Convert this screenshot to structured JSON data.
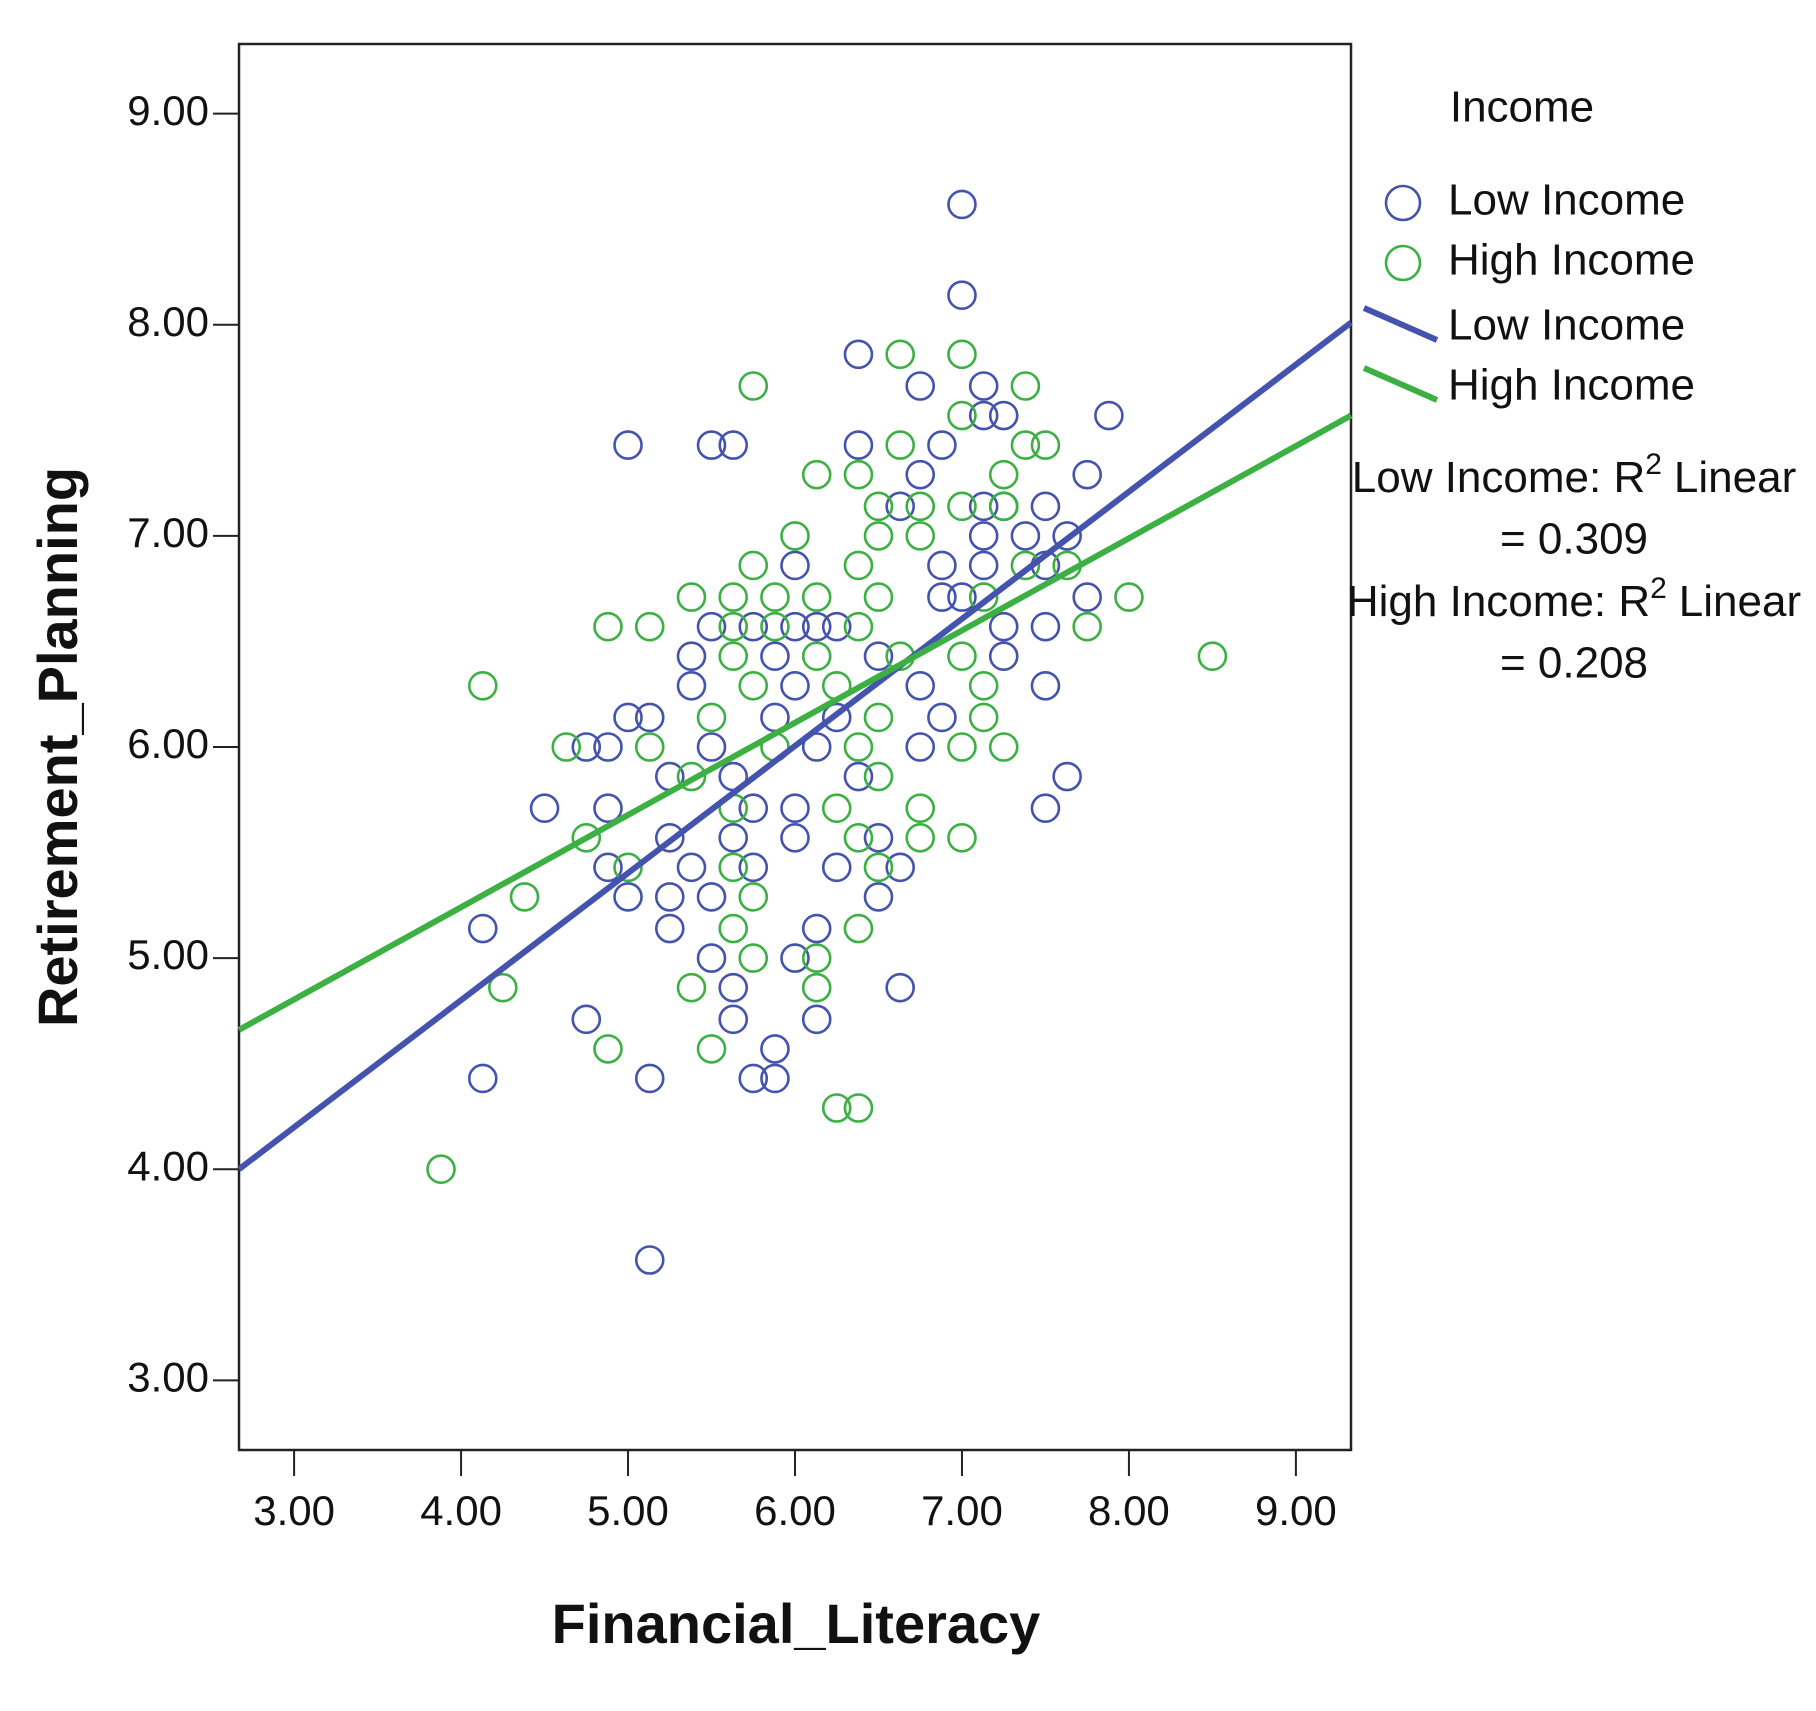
{
  "chart_data": {
    "type": "scatter",
    "x_label": "Financial_Literacy",
    "y_label": "Retirement_Planning",
    "legend_title": "Income",
    "xlim": [
      2.67,
      9.33
    ],
    "ylim": [
      2.67,
      9.33
    ],
    "xticks": [
      {
        "value": 3,
        "label": "3.00"
      },
      {
        "value": 4,
        "label": "4.00"
      },
      {
        "value": 5,
        "label": "5.00"
      },
      {
        "value": 6,
        "label": "6.00"
      },
      {
        "value": 7,
        "label": "7.00"
      },
      {
        "value": 8,
        "label": "8.00"
      },
      {
        "value": 9,
        "label": "9.00"
      }
    ],
    "yticks": [
      {
        "value": 3,
        "label": "3.00"
      },
      {
        "value": 4,
        "label": "4.00"
      },
      {
        "value": 5,
        "label": "5.00"
      },
      {
        "value": 6,
        "label": "6.00"
      },
      {
        "value": 7,
        "label": "7.00"
      },
      {
        "value": 8,
        "label": "8.00"
      },
      {
        "value": 9,
        "label": "9.00"
      }
    ],
    "series": [
      {
        "name": "Low Income",
        "color": "#4453ad",
        "x": [
          7.0,
          7.0,
          6.38,
          6.75,
          7.13,
          7.13,
          7.25,
          7.88,
          5.0,
          5.5,
          5.63,
          6.38,
          6.88,
          6.75,
          7.75,
          6.63,
          7.13,
          7.25,
          7.5,
          7.13,
          7.38,
          7.63,
          6.88,
          7.13,
          7.5,
          6.0,
          6.88,
          7.0,
          7.75,
          5.5,
          5.75,
          6.0,
          6.13,
          6.25,
          7.5,
          7.25,
          5.38,
          5.88,
          6.5,
          7.25,
          5.38,
          6.0,
          6.75,
          7.5,
          5.0,
          5.13,
          5.88,
          6.25,
          6.88,
          4.75,
          4.88,
          5.5,
          6.13,
          6.75,
          5.25,
          5.63,
          6.38,
          7.63,
          4.5,
          4.88,
          5.75,
          6.0,
          7.5,
          5.25,
          5.63,
          6.0,
          6.5,
          4.88,
          5.38,
          5.75,
          6.25,
          6.63,
          5.0,
          5.25,
          5.5,
          6.5,
          4.13,
          5.25,
          6.13,
          5.5,
          6.0,
          5.63,
          6.63,
          4.75,
          5.63,
          6.13,
          5.88,
          4.13,
          5.13,
          5.75,
          5.88,
          5.13
        ],
        "values": [
          8.57,
          8.14,
          7.86,
          7.71,
          7.71,
          7.57,
          7.57,
          7.57,
          7.43,
          7.43,
          7.43,
          7.43,
          7.43,
          7.29,
          7.29,
          7.14,
          7.14,
          7.14,
          7.14,
          7.0,
          7.0,
          7.0,
          6.86,
          6.86,
          6.86,
          6.86,
          6.71,
          6.71,
          6.71,
          6.57,
          6.57,
          6.57,
          6.57,
          6.57,
          6.57,
          6.57,
          6.43,
          6.43,
          6.43,
          6.43,
          6.29,
          6.29,
          6.29,
          6.29,
          6.14,
          6.14,
          6.14,
          6.14,
          6.14,
          6.0,
          6.0,
          6.0,
          6.0,
          6.0,
          5.86,
          5.86,
          5.86,
          5.86,
          5.71,
          5.71,
          5.71,
          5.71,
          5.71,
          5.57,
          5.57,
          5.57,
          5.57,
          5.43,
          5.43,
          5.43,
          5.43,
          5.43,
          5.29,
          5.29,
          5.29,
          5.29,
          5.14,
          5.14,
          5.14,
          5.0,
          5.0,
          4.86,
          4.86,
          4.71,
          4.71,
          4.71,
          4.57,
          4.43,
          4.43,
          4.43,
          4.43,
          3.57
        ]
      },
      {
        "name": "High Income",
        "color": "#3cb043",
        "x": [
          7.0,
          6.63,
          5.75,
          7.38,
          7.0,
          7.38,
          7.5,
          6.63,
          6.13,
          6.38,
          7.25,
          6.5,
          6.75,
          7.0,
          7.25,
          6.0,
          6.5,
          6.75,
          5.75,
          6.38,
          7.38,
          7.63,
          5.38,
          5.63,
          5.88,
          6.13,
          6.5,
          8.0,
          7.13,
          4.88,
          5.13,
          5.63,
          5.88,
          6.38,
          7.75,
          7.0,
          5.63,
          6.13,
          6.63,
          8.5,
          4.13,
          5.75,
          6.25,
          7.13,
          5.5,
          6.5,
          7.13,
          4.63,
          5.13,
          5.88,
          6.38,
          7.0,
          7.25,
          5.38,
          6.5,
          5.63,
          6.25,
          6.75,
          4.75,
          6.38,
          7.0,
          6.75,
          5.0,
          5.63,
          6.5,
          4.38,
          5.75,
          5.63,
          6.38,
          5.75,
          6.13,
          4.25,
          5.38,
          6.13,
          4.88,
          5.5,
          6.25,
          6.38,
          3.88
        ],
        "values": [
          7.86,
          7.86,
          7.71,
          7.71,
          7.57,
          7.43,
          7.43,
          7.43,
          7.29,
          7.29,
          7.29,
          7.14,
          7.14,
          7.14,
          7.14,
          7.0,
          7.0,
          7.0,
          6.86,
          6.86,
          6.86,
          6.86,
          6.71,
          6.71,
          6.71,
          6.71,
          6.71,
          6.71,
          6.71,
          6.57,
          6.57,
          6.57,
          6.57,
          6.57,
          6.57,
          6.43,
          6.43,
          6.43,
          6.43,
          6.43,
          6.29,
          6.29,
          6.29,
          6.29,
          6.14,
          6.14,
          6.14,
          6.0,
          6.0,
          6.0,
          6.0,
          6.0,
          6.0,
          5.86,
          5.86,
          5.71,
          5.71,
          5.71,
          5.57,
          5.57,
          5.57,
          5.57,
          5.43,
          5.43,
          5.43,
          5.29,
          5.29,
          5.14,
          5.14,
          5.0,
          5.0,
          4.86,
          4.86,
          4.86,
          4.57,
          4.57,
          4.29,
          4.29,
          4.0
        ]
      }
    ],
    "fit_lines": [
      {
        "name": "Low Income",
        "color": "#4453ad",
        "x": [
          2.67,
          9.33
        ],
        "y": [
          4.0,
          8.01
        ],
        "r2_label": {
          "prefix": "Low Income: R",
          "sup": "2",
          "suffix": "Linear",
          "value": "= 0.309"
        }
      },
      {
        "name": "High Income",
        "color": "#3cb043",
        "x": [
          2.67,
          9.33
        ],
        "y": [
          4.66,
          7.57
        ],
        "r2_label": {
          "prefix": "High Income: R",
          "sup": "2",
          "suffix": "Linear",
          "value": "= 0.208"
        }
      }
    ]
  }
}
